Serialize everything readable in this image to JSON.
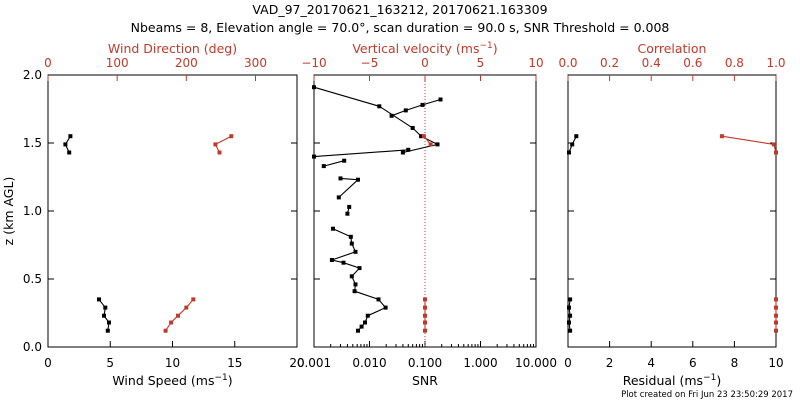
{
  "figure": {
    "title_line1": "VAD_97_20170621_163212, 20170621.163309",
    "title_line2": "Nbeams = 8, Elevation angle = 70.0°, scan duration = 90.0 s, SNR Threshold = 0.008",
    "footer": "Plot created on Fri Jun 23 23:50:29 2017",
    "colors": {
      "black": "#000000",
      "red": "#c03a2b"
    }
  },
  "chart_data": [
    {
      "type": "line",
      "panel": "wind",
      "ylabel": "z (km AGL)",
      "ylim": [
        0,
        2.0
      ],
      "yticks": [
        "0.0",
        "0.5",
        "1.0",
        "1.5",
        "2.0"
      ],
      "xlabel": "Wind Speed (ms",
      "xlabel_sup": "−1",
      "xlim": [
        0,
        20
      ],
      "xticks": [
        "0",
        "5",
        "10",
        "15",
        "20"
      ],
      "top_xlabel": "Wind Direction (deg)",
      "top_xlim": [
        0,
        360
      ],
      "top_xticks": [
        "0",
        "100",
        "200",
        "300"
      ],
      "series": [
        {
          "name": "Wind Speed",
          "color": "#000000",
          "z": [
            0.12,
            0.18,
            0.23,
            0.29,
            0.35
          ],
          "values": [
            4.8,
            4.9,
            4.5,
            4.6,
            4.1
          ]
        },
        {
          "name": "Wind Speed upper",
          "color": "#000000",
          "z": [
            1.43,
            1.49,
            1.55
          ],
          "values": [
            1.7,
            1.4,
            1.8
          ]
        },
        {
          "name": "Wind Direction",
          "color": "#c03a2b",
          "axis": "top",
          "z": [
            0.12,
            0.18,
            0.23,
            0.29,
            0.35
          ],
          "values": [
            170,
            178,
            188,
            200,
            210
          ]
        },
        {
          "name": "Wind Direction upper",
          "color": "#c03a2b",
          "axis": "top",
          "z": [
            1.43,
            1.49,
            1.55
          ],
          "values": [
            248,
            242,
            265
          ]
        }
      ]
    },
    {
      "type": "line",
      "panel": "snr",
      "xlabel": "SNR",
      "xscale": "log",
      "xlim": [
        0.001,
        10
      ],
      "xticks": [
        "0.001",
        "0.010",
        "0.100",
        "1.000",
        "10.000"
      ],
      "ylim": [
        0,
        2.0
      ],
      "top_xlabel": "Vertical velocity (ms",
      "top_xlabel_sup": "−1",
      "top_xlim": [
        -10,
        10
      ],
      "top_xticks": [
        "−10",
        "−5",
        "0",
        "5",
        "10"
      ],
      "threshold_ref": 0,
      "series": [
        {
          "name": "SNR",
          "color": "#000000",
          "segments": [
            {
              "z": [
                0.12,
                0.15,
                0.18,
                0.23,
                0.29,
                0.35,
                0.41,
                0.46,
                0.52,
                0.58,
                0.62,
                0.64,
                0.7,
                0.76,
                0.81,
                0.87
              ],
              "values": [
                0.0062,
                0.0072,
                0.0083,
                0.0093,
                0.0195,
                0.0145,
                0.0054,
                0.0056,
                0.0048,
                0.0066,
                0.0034,
                0.0021,
                0.0056,
                0.0048,
                0.0046,
                0.0022
              ]
            },
            {
              "z": [
                0.98,
                1.03
              ],
              "values": [
                0.004,
                0.0043
              ]
            },
            {
              "z": [
                1.1,
                1.23,
                1.24
              ],
              "values": [
                0.0028,
                0.0062,
                0.003
              ]
            },
            {
              "z": [
                1.33,
                1.37
              ],
              "values": [
                0.0015,
                0.0035
              ]
            },
            {
              "z": [
                1.43,
                1.49,
                1.55,
                1.61,
                1.77,
                1.91
              ],
              "values": [
                0.04,
                0.168,
                0.085,
                0.06,
                0.015,
                0.001
              ]
            },
            {
              "z": [
                1.4,
                1.45
              ],
              "values": [
                0.001,
                0.05
              ]
            },
            {
              "z": [
                1.7,
                1.74,
                1.78,
                1.82
              ],
              "values": [
                0.025,
                0.045,
                0.09,
                0.19
              ]
            }
          ]
        },
        {
          "name": "Vertical velocity",
          "color": "#c03a2b",
          "axis": "top",
          "z": [
            0.12,
            0.18,
            0.23,
            0.29,
            0.35
          ],
          "values": [
            0,
            0,
            0,
            0,
            0
          ]
        },
        {
          "name": "Vertical velocity upper",
          "color": "#c03a2b",
          "axis": "top",
          "z": [
            1.49,
            1.55
          ],
          "values": [
            0.5,
            -0.1
          ]
        }
      ]
    },
    {
      "type": "line",
      "panel": "residual",
      "xlabel": "Residual (ms",
      "xlabel_sup": "−1",
      "xlim": [
        0,
        10
      ],
      "xticks": [
        "0",
        "2",
        "4",
        "6",
        "8",
        "10"
      ],
      "ylim": [
        0,
        2.0
      ],
      "top_xlabel": "Correlation",
      "top_xlim": [
        0.0,
        1.0
      ],
      "top_xticks": [
        "0.0",
        "0.2",
        "0.4",
        "0.6",
        "0.8",
        "1.0"
      ],
      "series": [
        {
          "name": "Residual",
          "color": "#000000",
          "z": [
            0.12,
            0.18,
            0.23,
            0.29,
            0.35
          ],
          "values": [
            0.1,
            0.05,
            0.1,
            0.05,
            0.1
          ]
        },
        {
          "name": "Residual upper",
          "color": "#000000",
          "z": [
            1.43,
            1.49,
            1.55
          ],
          "values": [
            0.05,
            0.2,
            0.4
          ]
        },
        {
          "name": "Correlation",
          "color": "#c03a2b",
          "axis": "top",
          "z": [
            0.12,
            0.18,
            0.23,
            0.29,
            0.35
          ],
          "values": [
            1.0,
            1.0,
            1.0,
            1.0,
            1.0
          ]
        },
        {
          "name": "Correlation upper",
          "color": "#c03a2b",
          "axis": "top",
          "z": [
            1.43,
            1.49,
            1.55
          ],
          "values": [
            1.0,
            0.99,
            0.74
          ]
        }
      ]
    }
  ]
}
